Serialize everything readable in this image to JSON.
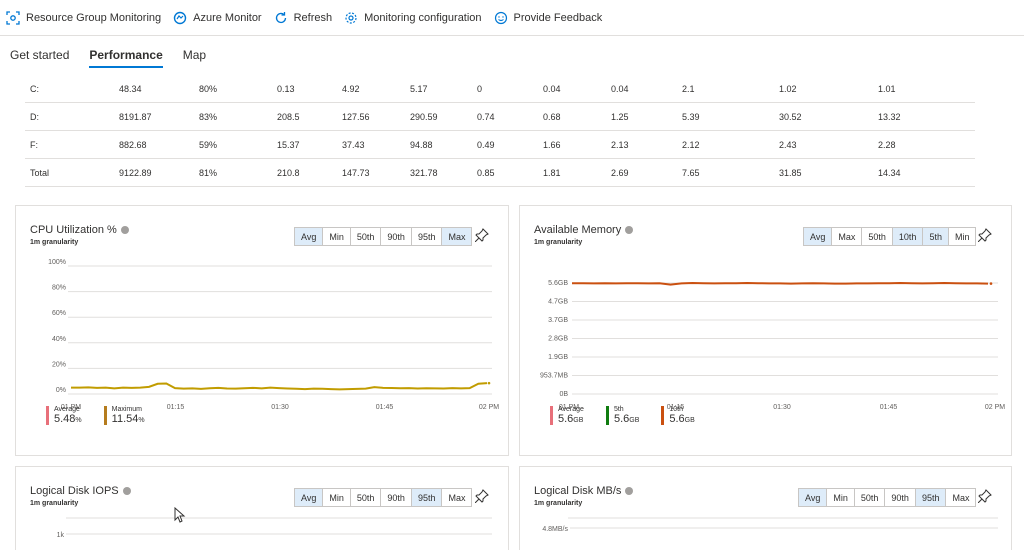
{
  "toolbar": {
    "items": [
      {
        "label": "Resource Group Monitoring",
        "icon": "resource-group-icon"
      },
      {
        "label": "Azure Monitor",
        "icon": "azure-monitor-icon"
      },
      {
        "label": "Refresh",
        "icon": "refresh-icon"
      },
      {
        "label": "Monitoring configuration",
        "icon": "gear-icon"
      },
      {
        "label": "Provide Feedback",
        "icon": "smiley-icon"
      }
    ]
  },
  "tabs": [
    {
      "label": "Get started"
    },
    {
      "label": "Performance"
    },
    {
      "label": "Map"
    }
  ],
  "disk_table": {
    "rows": [
      [
        "C:",
        "48.34",
        "80%",
        "0.13",
        "4.92",
        "5.17",
        "0",
        "0.04",
        "0.04",
        "2.1",
        "1.02",
        "1.01"
      ],
      [
        "D:",
        "8191.87",
        "83%",
        "208.5",
        "127.56",
        "290.59",
        "0.74",
        "0.68",
        "1.25",
        "5.39",
        "30.52",
        "13.32"
      ],
      [
        "F:",
        "882.68",
        "59%",
        "15.37",
        "37.43",
        "94.88",
        "0.49",
        "1.66",
        "2.13",
        "2.12",
        "2.43",
        "2.28"
      ],
      [
        "Total",
        "9122.89",
        "81%",
        "210.8",
        "147.73",
        "321.78",
        "0.85",
        "1.81",
        "2.69",
        "7.65",
        "31.85",
        "14.34"
      ]
    ]
  },
  "colors": {
    "accent": "#0078d4",
    "cpu_line": "#c19c00",
    "mem_line": "#ca5010",
    "avg_bar": "#e8707a",
    "max_bar": "#b57c1e",
    "p5_bar": "#107c10",
    "p10_bar": "#ca5010"
  },
  "chart_data": [
    {
      "type": "line",
      "title": "CPU Utilization %",
      "subtitle": "1m granularity",
      "aggregations": [
        "Avg",
        "Min",
        "50th",
        "90th",
        "95th",
        "Max"
      ],
      "y_ticks": [
        "100%",
        "80%",
        "60%",
        "40%",
        "20%",
        "0%"
      ],
      "ylim": [
        0,
        100
      ],
      "x_ticks": [
        "01 PM",
        "01:15",
        "01:30",
        "01:45",
        "02 PM"
      ],
      "series": [
        {
          "name": "Average",
          "values": [
            5,
            5,
            5.2,
            4.8,
            5,
            4.4,
            5,
            4.8,
            5,
            5.6,
            8,
            8.2,
            4.6,
            4.2,
            4.4,
            4,
            4.5,
            4.8,
            4.3,
            4.2,
            4.5,
            4.8,
            4.4,
            5,
            4.6,
            4.3,
            4.1,
            3.8,
            4.2,
            4.1,
            3.8,
            3.6,
            3.8,
            4,
            4.2,
            5.4,
            4.8,
            4.7,
            4.5,
            4.6,
            4.3,
            4.5,
            4.4,
            4.3,
            4.6,
            4.4,
            4.6,
            8,
            8.5
          ]
        }
      ],
      "legend": [
        {
          "name": "Average",
          "value": "5.48",
          "unit": "%"
        },
        {
          "name": "Maximum",
          "value": "11.54",
          "unit": "%"
        }
      ]
    },
    {
      "type": "line",
      "title": "Available Memory",
      "subtitle": "1m granularity",
      "aggregations": [
        "Avg",
        "Max",
        "50th",
        "10th",
        "5th",
        "Min"
      ],
      "y_ticks": [
        "5.6GB",
        "4.7GB",
        "3.7GB",
        "2.8GB",
        "1.9GB",
        "953.7MB",
        "0B"
      ],
      "ylim": [
        0,
        6
      ],
      "x_ticks": [
        "01 PM",
        "01:15",
        "01:30",
        "01:45",
        "02 PM"
      ],
      "series": [
        {
          "name": "Average",
          "values": [
            5.59,
            5.59,
            5.58,
            5.59,
            5.58,
            5.59,
            5.59,
            5.58,
            5.59,
            5.52,
            5.58,
            5.6,
            5.59,
            5.58,
            5.59,
            5.59,
            5.6,
            5.59,
            5.58,
            5.58,
            5.57,
            5.58,
            5.59,
            5.58,
            5.57,
            5.57,
            5.58,
            5.58,
            5.59,
            5.59,
            5.6,
            5.59,
            5.58,
            5.59,
            5.6,
            5.59,
            5.58,
            5.58,
            5.57
          ]
        }
      ],
      "legend": [
        {
          "name": "Average",
          "value": "5.6",
          "unit": "GB"
        },
        {
          "name": "5th",
          "value": "5.6",
          "unit": "GB"
        },
        {
          "name": "10th",
          "value": "5.6",
          "unit": "GB"
        }
      ]
    },
    {
      "type": "line",
      "title": "Logical Disk IOPS",
      "subtitle": "1m granularity",
      "aggregations": [
        "Avg",
        "Min",
        "50th",
        "90th",
        "95th",
        "Max"
      ],
      "y_ticks": [
        "1k"
      ]
    },
    {
      "type": "line",
      "title": "Logical Disk MB/s",
      "subtitle": "1m granularity",
      "aggregations": [
        "Avg",
        "Min",
        "50th",
        "90th",
        "95th",
        "Max"
      ],
      "y_ticks": [
        "4.8MB/s"
      ]
    }
  ]
}
